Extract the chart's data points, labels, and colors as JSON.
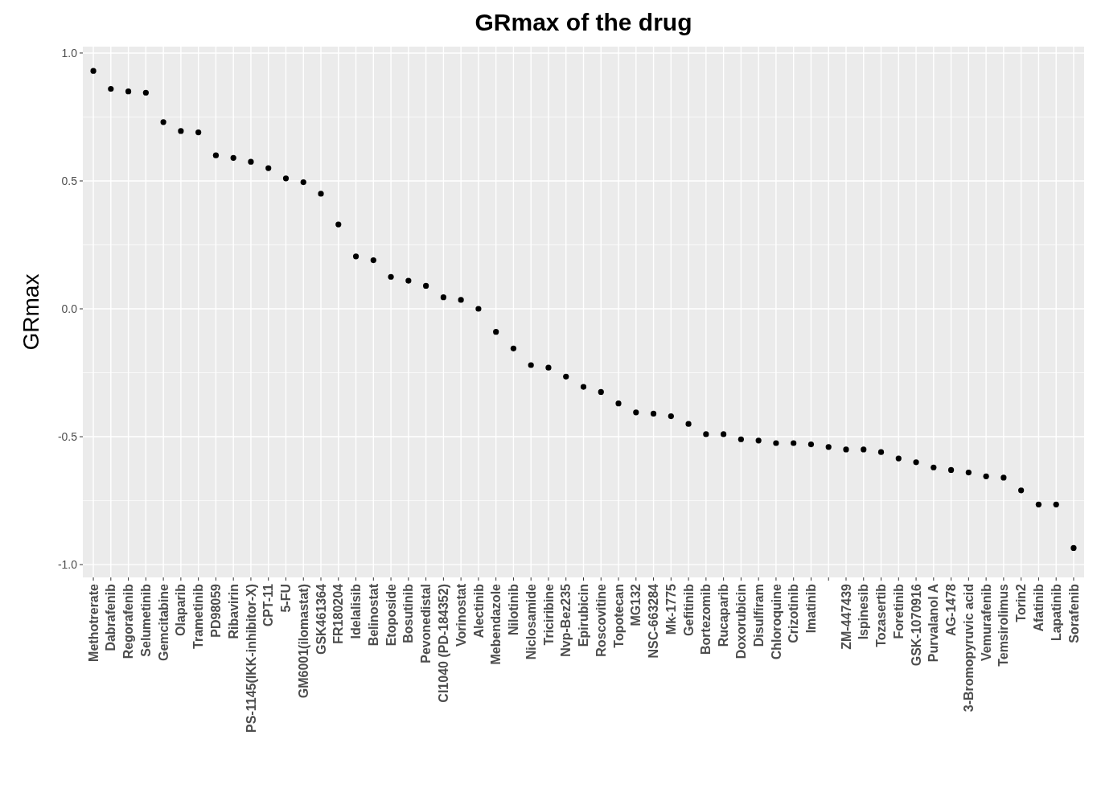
{
  "chart_data": {
    "type": "scatter",
    "title": "GRmax of the drug",
    "ylabel": "GRmax",
    "categories": [
      "Methotrerate",
      "Dabrafenib",
      "Regorafenib",
      "Selumetinib",
      "Gemcitabine",
      "Olaparib",
      "Trametinib",
      "PD98059",
      "Ribavirin",
      "PS-1145(IKK-inhibitor-X)",
      "CPT-11",
      "5-FU",
      "GM6001(ilomastat)",
      "GSK461364",
      "FR180204",
      "Idelalisib",
      "Belinostat",
      "Etoposide",
      "Bosutinib",
      "Pevonedistal",
      "CI1040 (PD-184352)",
      "Vorinostat",
      "Alectinib",
      "Mebendazole",
      "Nilotinib",
      "Niclosamide",
      "Triciribine",
      "Nvp-Bez235",
      "Epirubicin",
      "Roscovitine",
      "Topotecan",
      "MG132",
      "NSC-663284",
      "Mk-1775",
      "Gefitinib",
      "Bortezomib",
      "Rucaparib",
      "Doxorubicin",
      "Disulfiram",
      "Chloroquine",
      "Crizotinib",
      "Imatinib",
      null,
      "ZM-447439",
      "Ispinesib",
      "Tozasertib",
      "Foretinib",
      "GSK-1070916",
      "Purvalanol A",
      "AG-1478",
      "3-Bromopyruvic acid",
      "Vemurafenib",
      "Temsirolimus",
      "Torin2",
      "Afatinib",
      "Lapatinib",
      "Sorafenib"
    ],
    "series": [
      {
        "color": "#000000",
        "values": [
          0.93,
          0.86,
          0.85,
          0.845,
          0.73,
          0.695,
          0.69,
          0.6,
          0.59,
          0.575,
          0.55,
          0.51,
          0.495,
          0.45,
          0.33,
          0.205,
          0.19,
          0.125,
          0.11,
          0.09,
          0.045,
          0.035,
          0.0,
          -0.09,
          -0.155,
          -0.22,
          -0.23,
          -0.265,
          -0.305,
          -0.325,
          -0.37,
          -0.405,
          -0.41,
          -0.42,
          -0.45,
          -0.49,
          -0.49,
          -0.51,
          -0.515,
          -0.525,
          -0.525,
          -0.53,
          -0.54,
          -0.55,
          -0.55,
          -0.56,
          -0.585,
          -0.6,
          -0.62,
          -0.63,
          -0.64,
          -0.655,
          -0.66,
          -0.71,
          -0.765,
          -0.765,
          -0.935
        ]
      }
    ],
    "ylim": [
      -1.05,
      1.025
    ],
    "yticks": [
      {
        "value": -1,
        "label": "-1.0"
      },
      {
        "value": -0.5,
        "label": "-0.5"
      },
      {
        "value": 0,
        "label": "0.0"
      },
      {
        "value": 0.5,
        "label": "0.5"
      },
      {
        "value": 1,
        "label": "1.0"
      }
    ],
    "grid": true,
    "marker": "circle"
  }
}
